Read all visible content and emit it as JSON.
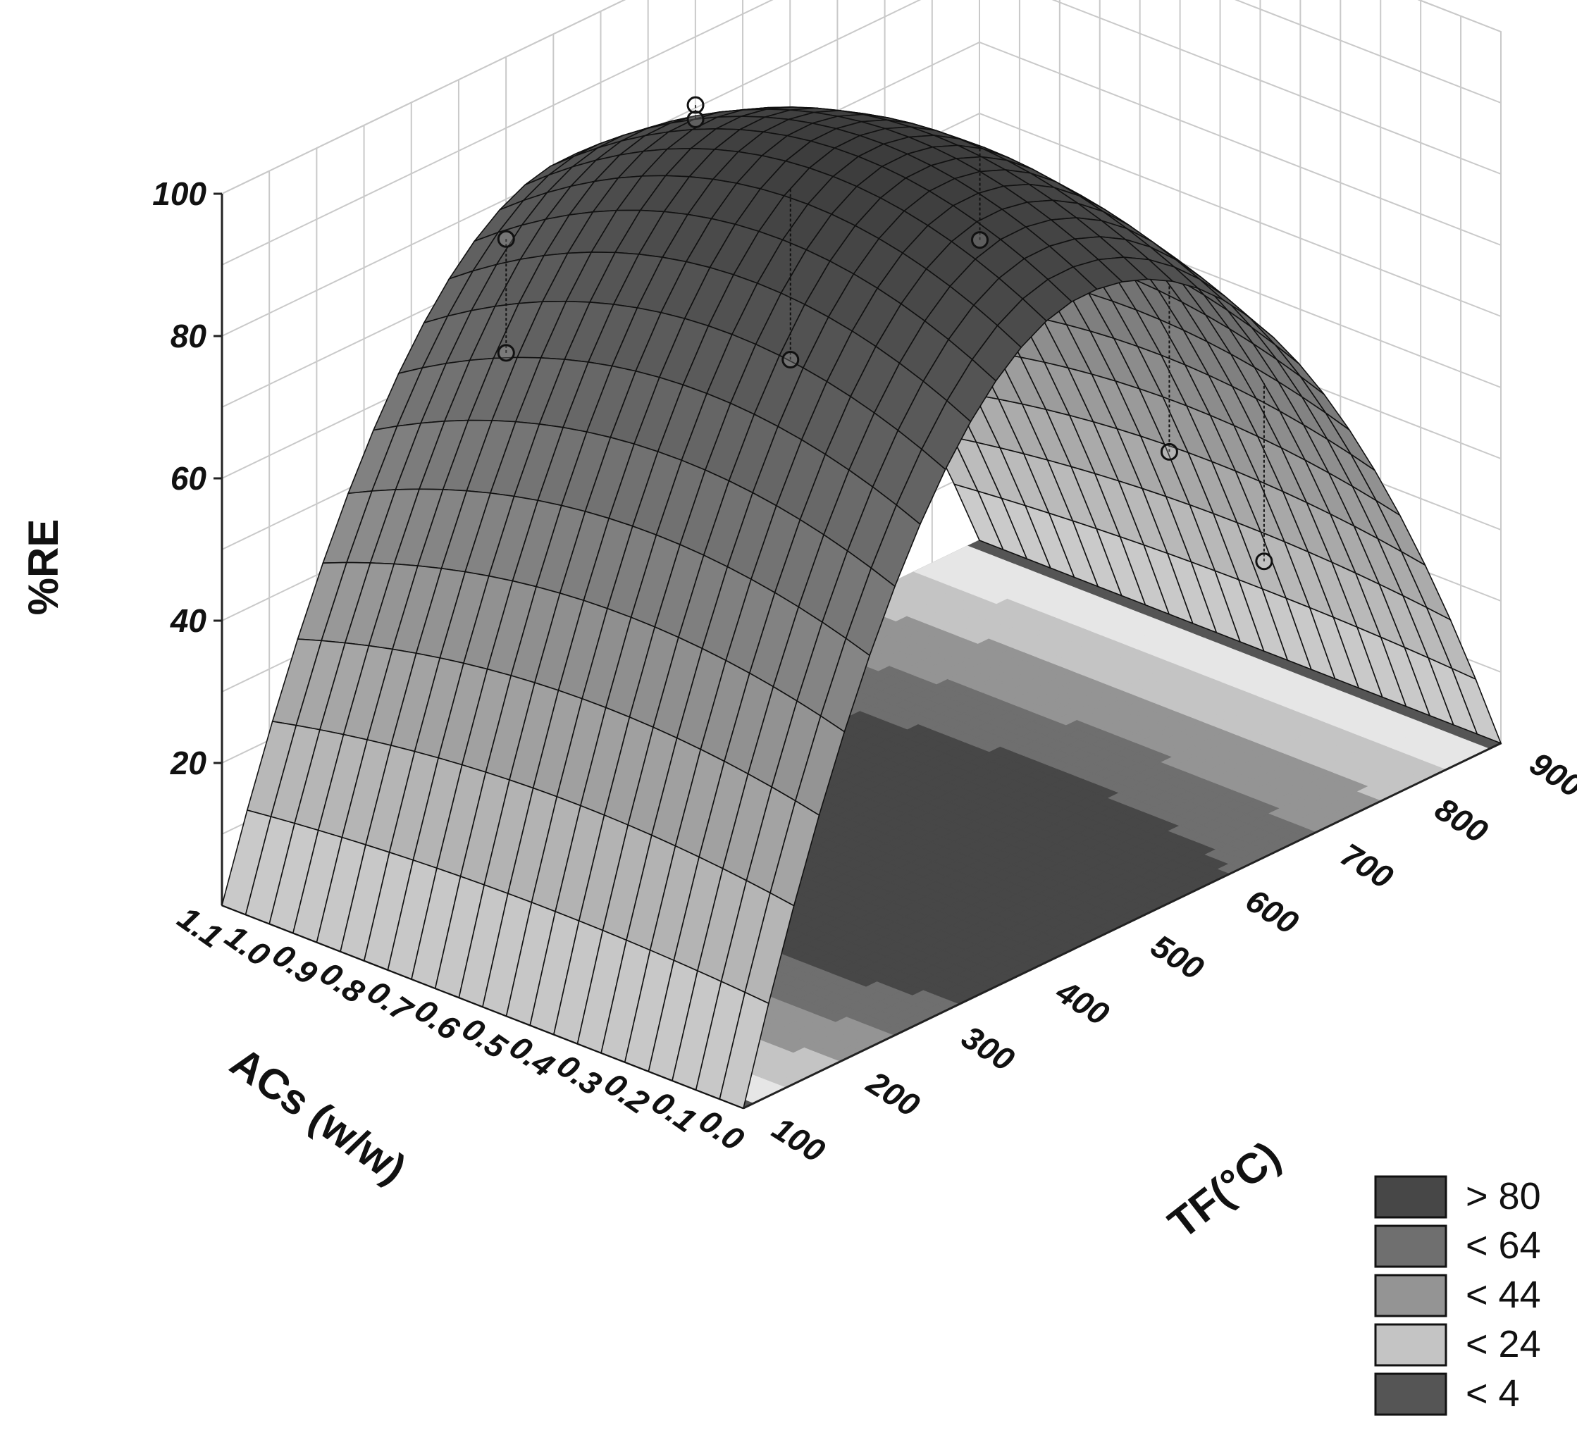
{
  "chart_data": {
    "type": "surface3d",
    "zlabel": "%RE",
    "xlabel": "ACs (w/w)",
    "ylabel": "TF(°C)",
    "x_ticks": [
      "1.1",
      "1.0",
      "0.9",
      "0.8",
      "0.7",
      "0.6",
      "0.5",
      "0.4",
      "0.3",
      "0.2",
      "0.1",
      "0.0"
    ],
    "y_ticks": [
      "100",
      "200",
      "300",
      "400",
      "500",
      "600",
      "700",
      "800",
      "900"
    ],
    "z_ticks": [
      "20",
      "40",
      "60",
      "80",
      "100"
    ],
    "xlim": [
      0.0,
      1.1
    ],
    "ylim": [
      100,
      900
    ],
    "zlim": [
      0,
      100
    ],
    "surface": {
      "peak_re": 100,
      "peak_tf": 460,
      "peak_acs_range": [
        0.3,
        0.6
      ],
      "re_at_tf_100": 0,
      "re_at_tf_900": 0
    },
    "observed_points": [
      {
        "acs": 0.9,
        "tf": 300,
        "re": 86
      },
      {
        "acs": 0.9,
        "tf": 300,
        "re": 70
      },
      {
        "acs": 0.5,
        "tf": 400,
        "re": 73
      },
      {
        "acs": 0.9,
        "tf": 500,
        "re": 92
      },
      {
        "acs": 0.9,
        "tf": 500,
        "re": 90
      },
      {
        "acs": 0.5,
        "tf": 600,
        "re": 77
      },
      {
        "acs": 0.3,
        "tf": 700,
        "re": 46
      },
      {
        "acs": 0.2,
        "tf": 750,
        "re": 30
      }
    ],
    "legend": {
      "placement": "bottom-right",
      "items": [
        {
          "label": "> 80",
          "color": "#474747"
        },
        {
          "label": "< 64",
          "color": "#6f6f6f"
        },
        {
          "label": "< 44",
          "color": "#949494"
        },
        {
          "label": "< 24",
          "color": "#c4c4c4"
        },
        {
          "label": "< 4",
          "color": "#555555"
        }
      ]
    },
    "grid": true
  }
}
